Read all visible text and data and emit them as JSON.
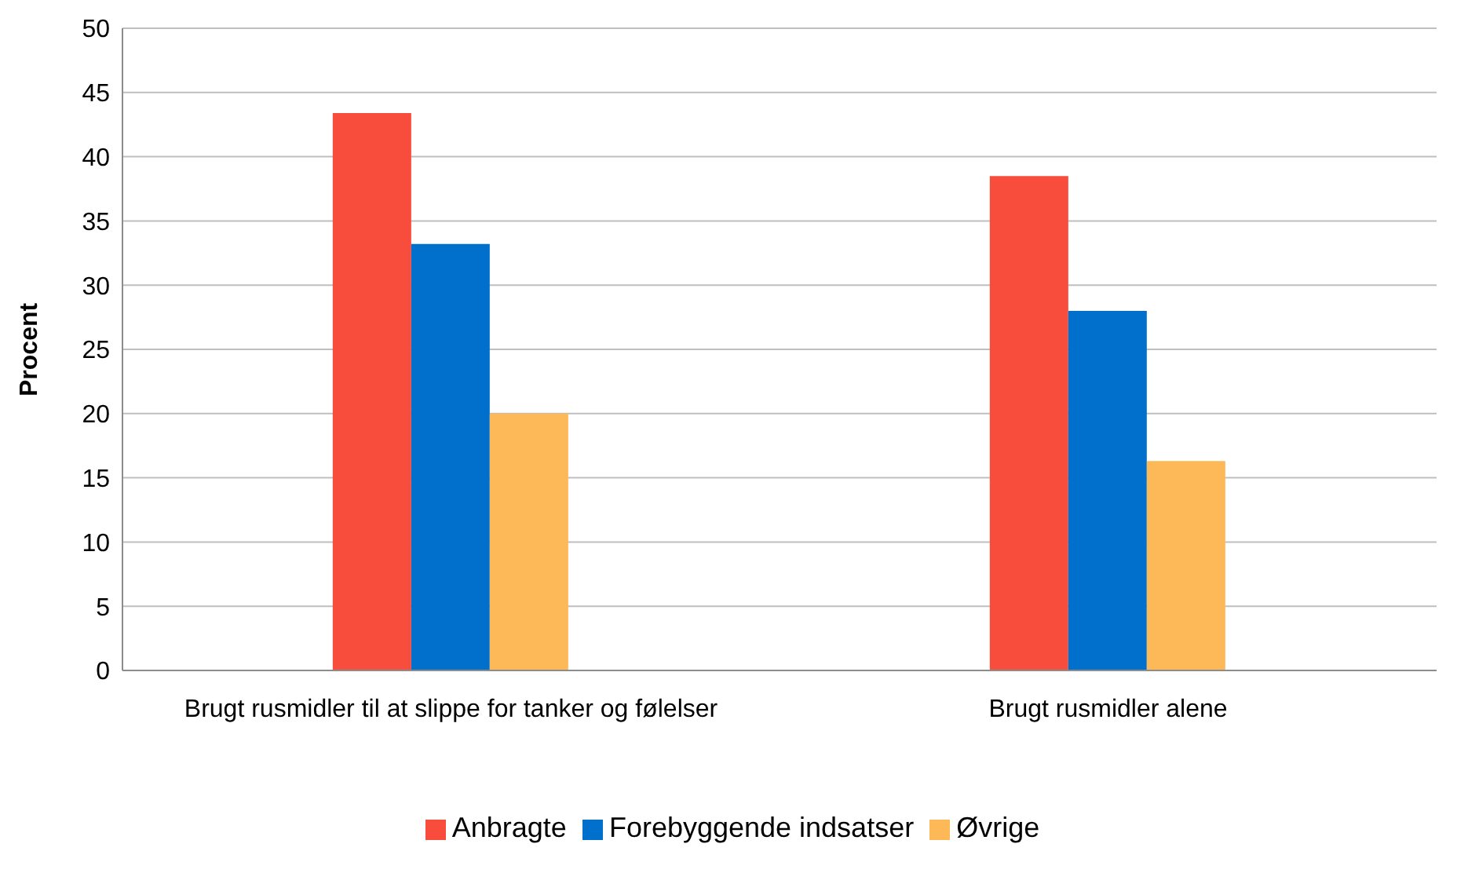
{
  "chart_data": {
    "type": "bar",
    "ylabel": "Procent",
    "categories": [
      "Brugt rusmidler til at slippe for tanker og følelser",
      "Brugt rusmidler alene"
    ],
    "series": [
      {
        "name": "Anbragte",
        "color": "#f84c3c",
        "values": [
          43.4,
          38.5
        ]
      },
      {
        "name": "Forebyggende indsatser",
        "color": "#0070cc",
        "values": [
          33.2,
          28.0
        ]
      },
      {
        "name": "Øvrige",
        "color": "#fdb858",
        "values": [
          20.0,
          16.3
        ]
      }
    ],
    "ylim": [
      0,
      50
    ],
    "yticks": [
      0,
      5,
      10,
      15,
      20,
      25,
      30,
      35,
      40,
      45,
      50
    ],
    "grid": "y",
    "legend": "bottom"
  }
}
